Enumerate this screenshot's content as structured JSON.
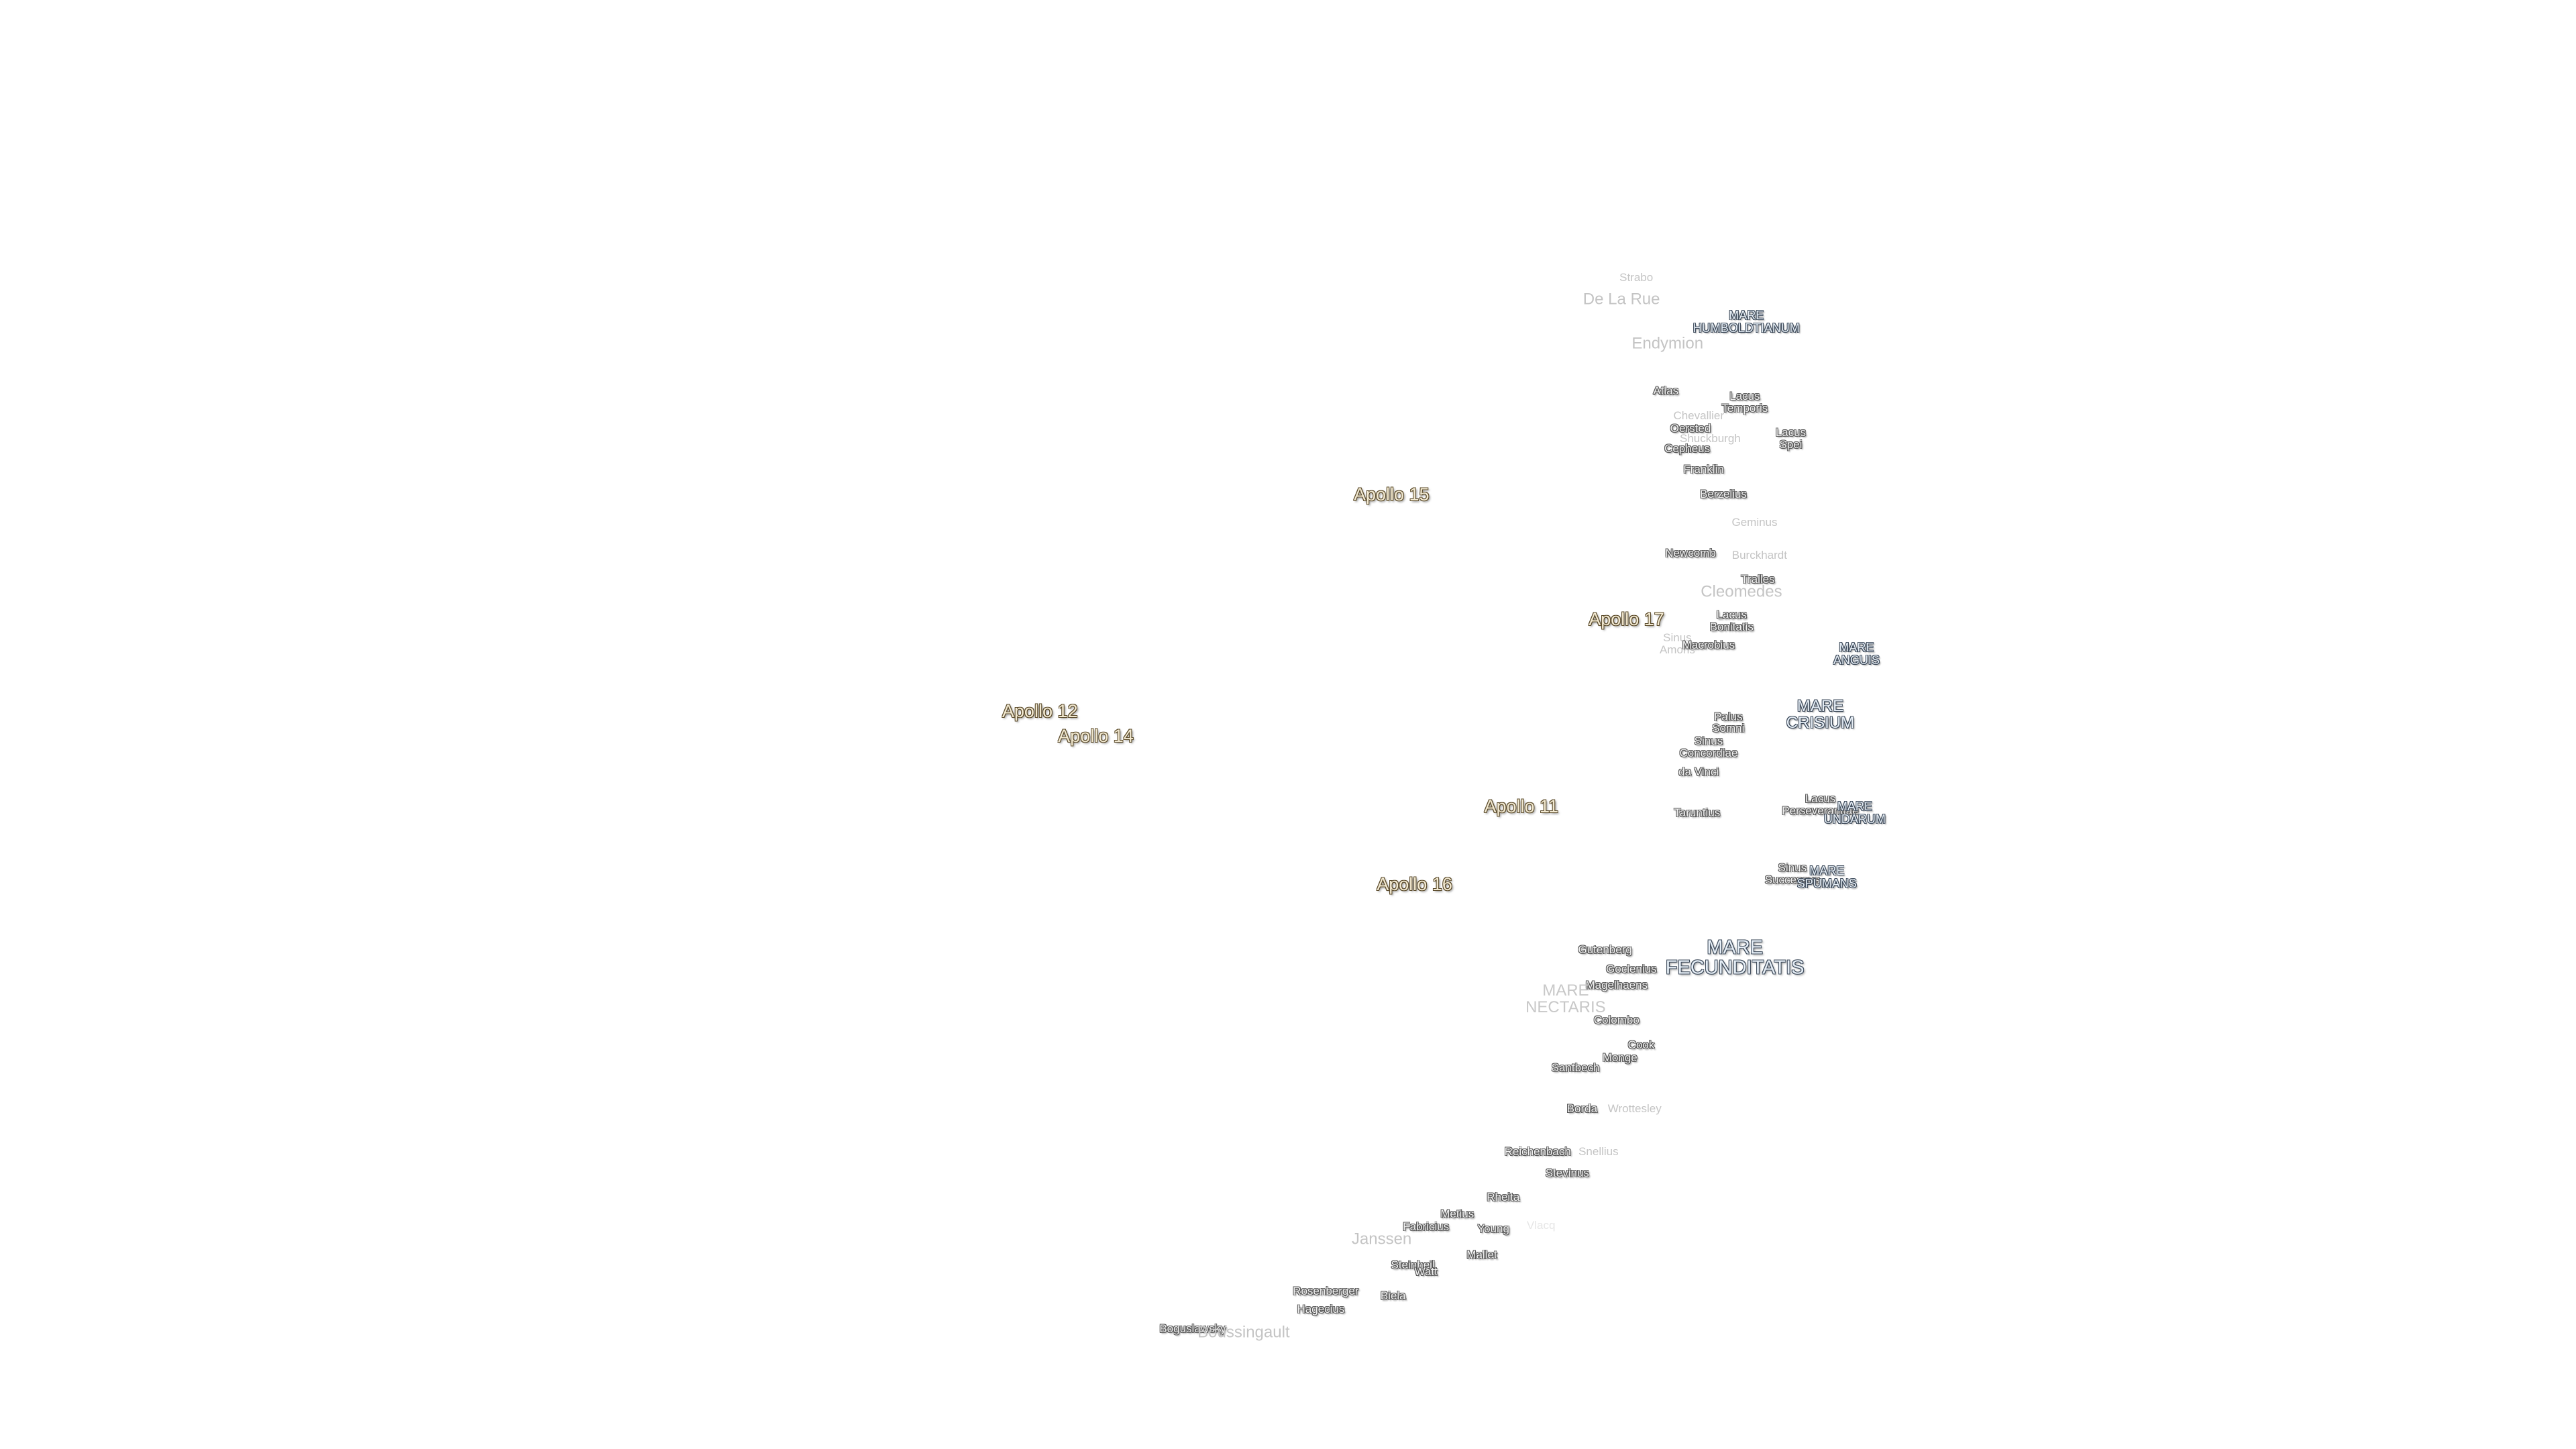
{
  "labels": [
    "Strabo",
    "De La Rue",
    "MARE HUMBOLDTIANUM",
    "Endymion",
    "Atlas",
    "Lacus Temporis",
    "Chevallier",
    "Oersted",
    "Shuckburgh",
    "Cepheus",
    "Lacus Spei",
    "Franklin",
    "Apollo 15",
    "Berzelius",
    "Geminus",
    "Newcomb",
    "Burckhardt",
    "Tralles",
    "Cleomedes",
    "Apollo 17",
    "Lacus Bonitatis",
    "Sinus Amoris",
    "Macrobius",
    "MARE ANGUIS",
    "Apollo 12",
    "Apollo 14",
    "MARE CRISIUM",
    "Palus Somni",
    "Sinus Concordiae",
    "da Vinci",
    "Apollo 11",
    "Taruntius",
    "Lacus Perseverantiae",
    "MARE UNDARUM",
    "Sinus Successus",
    "MARE SPUMANS",
    "Apollo 16",
    "MARE FECUNDITATIS",
    "Gutenberg",
    "Goclenius",
    "Magelhaens",
    "MARE NECTARIS",
    "Colombo",
    "Cook",
    "Monge",
    "Santbech",
    "Borda",
    "Wrottesley",
    "Reichenbach",
    "Snellius",
    "Stevinus",
    "Rheita",
    "Metius",
    "Fabricius",
    "Young",
    "Vlacq",
    "Janssen",
    "Mallet",
    "Steinheil",
    "Watt",
    "Rosenberger",
    "Biela",
    "Hagecius",
    "Boguslawsky",
    "Boussingault"
  ]
}
